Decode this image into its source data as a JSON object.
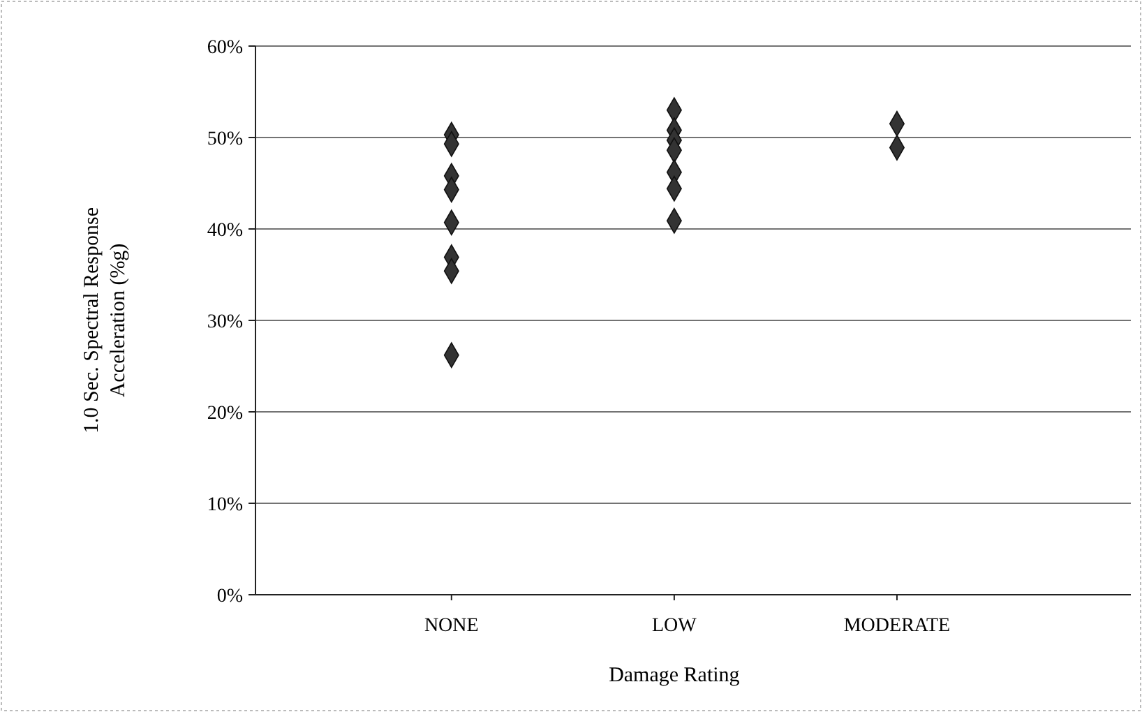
{
  "chart_data": {
    "type": "scatter",
    "xlabel": "Damage Rating",
    "ylabel": "1.0 Sec. Spectral Response Acceleration (%g)",
    "categories": [
      "NONE",
      "LOW",
      "MODERATE"
    ],
    "series": [
      {
        "color": "#333333",
        "x": [
          "NONE",
          "NONE",
          "NONE",
          "NONE",
          "NONE",
          "NONE",
          "NONE",
          "NONE",
          "LOW",
          "LOW",
          "LOW",
          "LOW",
          "LOW",
          "LOW",
          "LOW",
          "MODERATE",
          "MODERATE"
        ],
        "values": [
          50.3,
          49.3,
          45.8,
          44.3,
          40.7,
          36.9,
          35.4,
          26.2,
          53.0,
          50.8,
          49.7,
          48.6,
          46.2,
          44.4,
          40.9,
          51.5,
          48.9
        ]
      }
    ],
    "ylim": [
      0,
      60
    ],
    "yticks": [
      {
        "value": 0,
        "label": "0%"
      },
      {
        "value": 10,
        "label": "10%"
      },
      {
        "value": 20,
        "label": "20%"
      },
      {
        "value": 30,
        "label": "30%"
      },
      {
        "value": 40,
        "label": "40%"
      },
      {
        "value": 50,
        "label": "50%"
      },
      {
        "value": 60,
        "label": "60%"
      }
    ],
    "grid": "y",
    "marker": "diamond"
  }
}
